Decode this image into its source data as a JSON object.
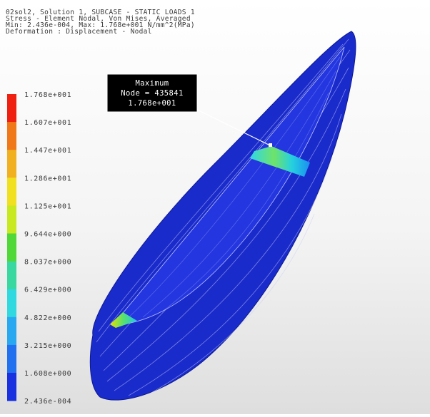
{
  "header": {
    "lines": [
      "02sol2, Solution 1, SUBCASE - STATIC LOADS 1",
      "Stress - Element Nodal, Von Mises, Averaged",
      "Min: 2.436e-004, Max: 1.768e+001 N/mm^2(MPa)",
      "Deformation : Displacement - Nodal"
    ]
  },
  "legend": {
    "labels": [
      "1.768e+001",
      "1.607e+001",
      "1.447e+001",
      "1.286e+001",
      "1.125e+001",
      "9.644e+000",
      "8.037e+000",
      "6.429e+000",
      "4.822e+000",
      "3.215e+000",
      "1.608e+000",
      "2.436e-004"
    ],
    "colors": [
      "#f02010",
      "#f07818",
      "#f0b020",
      "#f0e020",
      "#c8e820",
      "#50d838",
      "#38d8a0",
      "#30d8e0",
      "#28a8f0",
      "#2070f0",
      "#1830e0"
    ]
  },
  "annotation": {
    "lines": [
      "Maximum",
      "Node = 435841",
      "1.768e+001"
    ]
  }
}
